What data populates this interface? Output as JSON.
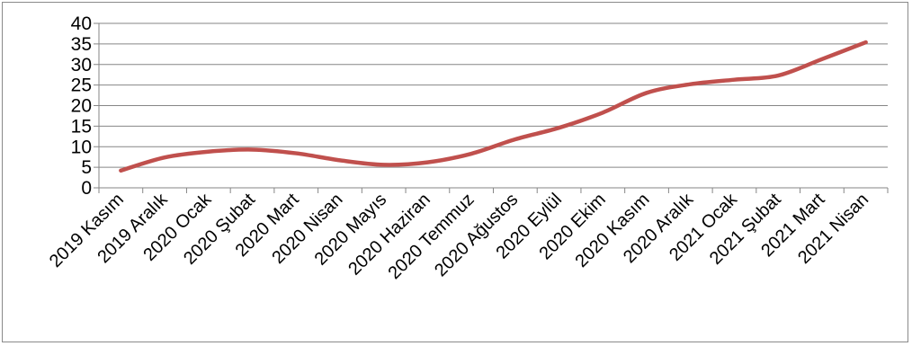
{
  "chart_data": {
    "type": "line",
    "categories": [
      "2019 Kasım",
      "2019 Aralık",
      "2020 Ocak",
      "2020 Şubat",
      "2020 Mart",
      "2020 Nisan",
      "2020 Mayıs",
      "2020 Haziran",
      "2020 Temmuz",
      "2020 Ağustos",
      "2020 Eylül",
      "2020 Ekim",
      "2020 Kasım",
      "2020 Aralık",
      "2021 Ocak",
      "2021 Şubat",
      "2021 Mart",
      "2021 Nisan"
    ],
    "series": [
      {
        "values": [
          4.2,
          7.4,
          8.8,
          9.3,
          8.4,
          6.7,
          5.6,
          6.2,
          8.3,
          11.8,
          14.6,
          18.3,
          23.1,
          25.2,
          26.3,
          27.3,
          31.3,
          35.4
        ],
        "color": "#c0504d"
      }
    ],
    "ylim": [
      0,
      40
    ],
    "yticks": [
      0,
      5,
      10,
      15,
      20,
      25,
      30,
      35,
      40
    ],
    "grid": true,
    "legend": "none",
    "title": "",
    "xlabel": "",
    "ylabel": ""
  }
}
